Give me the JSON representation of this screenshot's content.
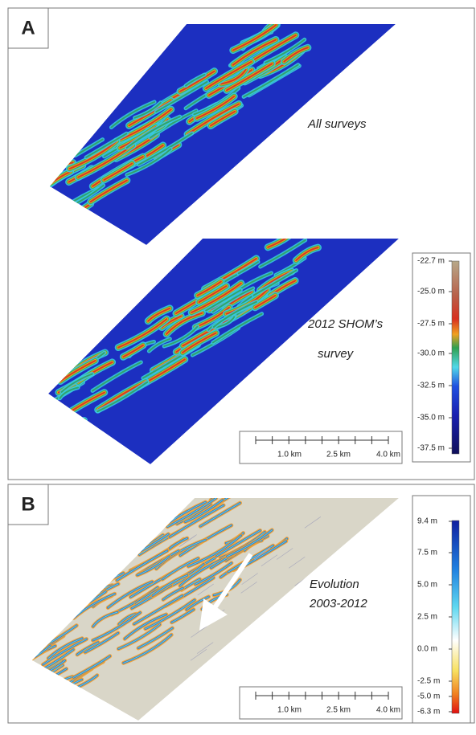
{
  "panels": [
    {
      "label": "A",
      "maps": [
        {
          "caption": [
            "All surveys"
          ]
        },
        {
          "caption": [
            "2012 SHOM’s",
            "survey"
          ]
        }
      ],
      "colorbar": [
        "-22.7 m",
        "-25.0 m",
        "-27.5 m",
        "-30.0 m",
        "-32.5 m",
        "-35.0 m",
        "-37.5 m"
      ],
      "scale_bar": [
        "1.0 km",
        "2.5 km",
        "4.0 km"
      ]
    },
    {
      "label": "B",
      "maps": [
        {
          "caption": [
            "Evolution",
            "2003-2012"
          ]
        }
      ],
      "colorbar": [
        "9.4 m",
        "7.5 m",
        "5.0 m",
        "2.5 m",
        "0.0 m",
        "-2.5 m",
        "-5.0 m",
        "-6.3 m"
      ],
      "scale_bar": [
        "1.0 km",
        "2.5 km",
        "4.0 km"
      ]
    }
  ]
}
